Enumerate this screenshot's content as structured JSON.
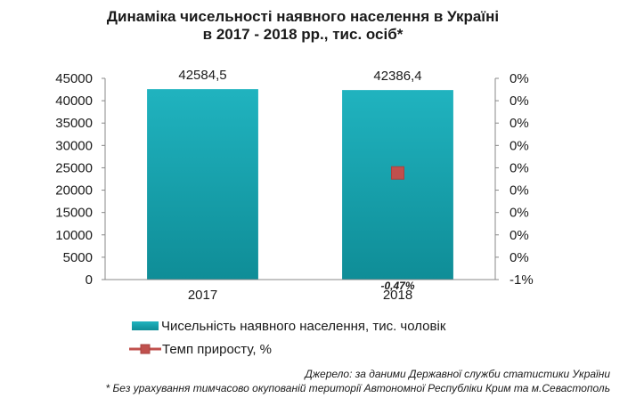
{
  "chart_data": {
    "type": "bar",
    "title_line1": "Динаміка чисельності наявного населення в Україні",
    "title_line2": "в 2017 - 2018 рр., тис. осіб*",
    "categories": [
      "2017",
      "2018"
    ],
    "series": [
      {
        "name": "Чисельність наявного населення, тис. чоловік",
        "type": "bar",
        "axis": "left",
        "values": [
          42584.5,
          42386.4
        ],
        "labels": [
          "42584,5",
          "42386,4"
        ],
        "color": "#1ba9b5"
      },
      {
        "name": "Темп приросту, %",
        "type": "line",
        "axis": "right",
        "values": [
          null,
          -0.47
        ],
        "labels": [
          "",
          "-0,47%"
        ],
        "color": "#c0504d"
      }
    ],
    "y_left": {
      "min": 0,
      "max": 45000,
      "ticks": [
        "0",
        "5000",
        "10000",
        "15000",
        "20000",
        "25000",
        "30000",
        "35000",
        "40000",
        "45000"
      ]
    },
    "y_right": {
      "min": -1,
      "max": 0,
      "ticks": [
        "-1%",
        "0%",
        "0%",
        "0%",
        "0%",
        "0%",
        "0%",
        "0%",
        "0%",
        "0%"
      ]
    },
    "grid": false,
    "legend_position": "bottom-left"
  },
  "source": "Джерело: за даними Державної служби статистики України",
  "footnote": "* Без урахування тимчасово окупованій території Автономної Республіки Крим та м.Севастополь"
}
